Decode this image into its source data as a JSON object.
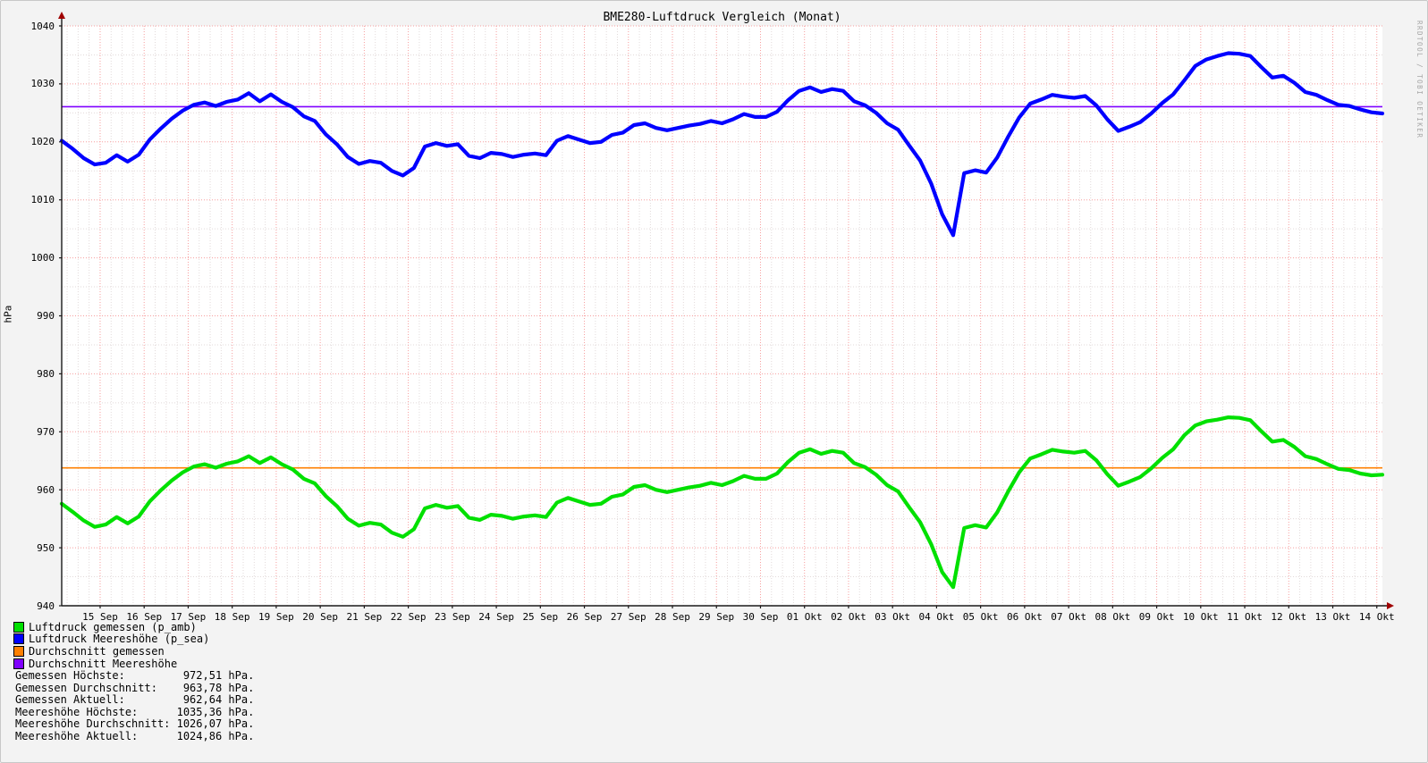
{
  "watermark": "RRDTOOL / TOBI OETIKER",
  "colors": {
    "measured": "#00e000",
    "sealevel": "#0000ff",
    "avg_measured": "#ff8000",
    "avg_sealevel": "#7f00ff",
    "grid_major": "#f79e9e",
    "grid_minor": "#e2dada",
    "axis": "#1a1a1a",
    "arrow": "#a00000",
    "canvas": "#ffffff",
    "background": "#f3f3f3"
  },
  "legend": [
    {
      "label": "Luftdruck gemessen (p_amb)",
      "color": "#00e000"
    },
    {
      "label": "Luftdruck Meereshöhe (p_sea)",
      "color": "#0000ff"
    },
    {
      "label": "Durchschnitt gemessen",
      "color": "#ff8000"
    },
    {
      "label": "Durchschnitt Meereshöhe",
      "color": "#7f00ff"
    }
  ],
  "stats": [
    {
      "label": "Gemessen Höchste:",
      "value": "972,51",
      "unit": "hPa."
    },
    {
      "label": "Gemessen Durchschnitt:",
      "value": "963,78",
      "unit": "hPa."
    },
    {
      "label": "Gemessen Aktuell:",
      "value": "962,64",
      "unit": "hPa."
    },
    {
      "label": "Meereshöhe Höchste:",
      "value": "1035,36",
      "unit": "hPa."
    },
    {
      "label": "Meereshöhe Durchschnitt:",
      "value": "1026,07",
      "unit": "hPa."
    },
    {
      "label": "Meereshöhe Aktuell:",
      "value": "1024,86",
      "unit": "hPa."
    }
  ],
  "chart_data": {
    "type": "line",
    "title": "BME280-Luftdruck Vergleich (Monat)",
    "xlabel": "",
    "ylabel": "hPa",
    "ylim": [
      940,
      1040
    ],
    "y_ticks": [
      1040,
      1030,
      1020,
      1010,
      1000,
      990,
      980,
      970,
      960,
      950,
      940
    ],
    "x_ticks": [
      "15 Sep",
      "16 Sep",
      "17 Sep",
      "18 Sep",
      "19 Sep",
      "20 Sep",
      "21 Sep",
      "22 Sep",
      "23 Sep",
      "24 Sep",
      "25 Sep",
      "26 Sep",
      "27 Sep",
      "28 Sep",
      "29 Sep",
      "30 Sep",
      "01 Okt",
      "02 Okt",
      "03 Okt",
      "04 Okt",
      "05 Okt",
      "06 Okt",
      "07 Okt",
      "08 Okt",
      "09 Okt",
      "10 Okt",
      "11 Okt",
      "12 Okt",
      "13 Okt",
      "14 Okt"
    ],
    "x_range_days": 30,
    "x_step_days": 0.25,
    "first_tick_day_offset": 0.873,
    "grid": true,
    "legend_position": "bottom-left",
    "hrules": [
      {
        "name": "Durchschnitt gemessen",
        "value": 963.78,
        "color": "#ff8000"
      },
      {
        "name": "Durchschnitt Meereshöhe",
        "value": 1026.07,
        "color": "#7f00ff"
      }
    ],
    "series": [
      {
        "name": "Luftdruck gemessen (p_amb)",
        "color": "#00e000",
        "max": 972.51,
        "avg": 963.78,
        "last": 962.64,
        "values": [
          957.6,
          956.2,
          954.7,
          953.6,
          954.0,
          955.3,
          954.2,
          955.4,
          958.0,
          959.9,
          961.6,
          963.0,
          964.0,
          964.4,
          963.8,
          964.5,
          964.9,
          965.8,
          964.6,
          965.6,
          964.4,
          963.5,
          961.9,
          961.1,
          958.9,
          957.2,
          955.0,
          953.8,
          954.3,
          954.0,
          952.6,
          951.9,
          953.2,
          956.8,
          957.4,
          956.9,
          957.2,
          955.2,
          954.8,
          955.7,
          955.5,
          955.0,
          955.4,
          955.6,
          955.3,
          957.8,
          958.6,
          958.0,
          957.4,
          957.6,
          958.8,
          959.2,
          960.5,
          960.8,
          960.0,
          959.6,
          960.0,
          960.4,
          960.7,
          961.2,
          960.8,
          961.5,
          962.4,
          961.9,
          961.9,
          962.8,
          964.8,
          966.4,
          967.0,
          966.2,
          966.7,
          966.4,
          964.6,
          963.9,
          962.6,
          960.8,
          959.7,
          957.0,
          954.4,
          950.6,
          945.8,
          943.2,
          953.4,
          953.9,
          953.5,
          956.1,
          959.7,
          963.0,
          965.4,
          966.1,
          966.9,
          966.6,
          966.4,
          966.7,
          965.1,
          962.7,
          960.7,
          961.4,
          962.2,
          963.7,
          965.5,
          967.0,
          969.4,
          971.1,
          971.8,
          972.1,
          972.5,
          972.4,
          972.0,
          970.1,
          968.3,
          968.6,
          967.4,
          965.8,
          965.3,
          964.4,
          963.6,
          963.4,
          962.8,
          962.5,
          962.6
        ]
      },
      {
        "name": "Luftdruck Meereshöhe (p_sea)",
        "color": "#0000ff",
        "max": 1035.36,
        "avg": 1026.07,
        "last": 1024.86,
        "values": [
          1020.2,
          1018.8,
          1017.2,
          1016.1,
          1016.4,
          1017.7,
          1016.6,
          1017.8,
          1020.4,
          1022.3,
          1024.0,
          1025.4,
          1026.4,
          1026.8,
          1026.2,
          1026.9,
          1027.3,
          1028.4,
          1027.0,
          1028.2,
          1026.9,
          1026.0,
          1024.4,
          1023.6,
          1021.3,
          1019.6,
          1017.4,
          1016.2,
          1016.7,
          1016.4,
          1015.0,
          1014.2,
          1015.5,
          1019.2,
          1019.8,
          1019.3,
          1019.6,
          1017.6,
          1017.2,
          1018.1,
          1017.9,
          1017.4,
          1017.8,
          1018.0,
          1017.7,
          1020.2,
          1021.0,
          1020.4,
          1019.8,
          1020.0,
          1021.2,
          1021.6,
          1022.9,
          1023.2,
          1022.4,
          1022.0,
          1022.4,
          1022.8,
          1023.1,
          1023.6,
          1023.2,
          1023.9,
          1024.8,
          1024.3,
          1024.3,
          1025.2,
          1027.2,
          1028.8,
          1029.4,
          1028.6,
          1029.1,
          1028.8,
          1027.0,
          1026.3,
          1025.0,
          1023.2,
          1022.1,
          1019.4,
          1016.8,
          1012.8,
          1007.5,
          1003.9,
          1014.6,
          1015.1,
          1014.7,
          1017.3,
          1020.9,
          1024.2,
          1026.6,
          1027.3,
          1028.1,
          1027.8,
          1027.6,
          1027.9,
          1026.3,
          1023.9,
          1021.9,
          1022.6,
          1023.4,
          1024.9,
          1026.7,
          1028.2,
          1030.6,
          1033.1,
          1034.2,
          1034.8,
          1035.3,
          1035.2,
          1034.8,
          1032.9,
          1031.1,
          1031.4,
          1030.2,
          1028.6,
          1028.1,
          1027.2,
          1026.4,
          1026.2,
          1025.6,
          1025.1,
          1024.9
        ]
      }
    ]
  }
}
